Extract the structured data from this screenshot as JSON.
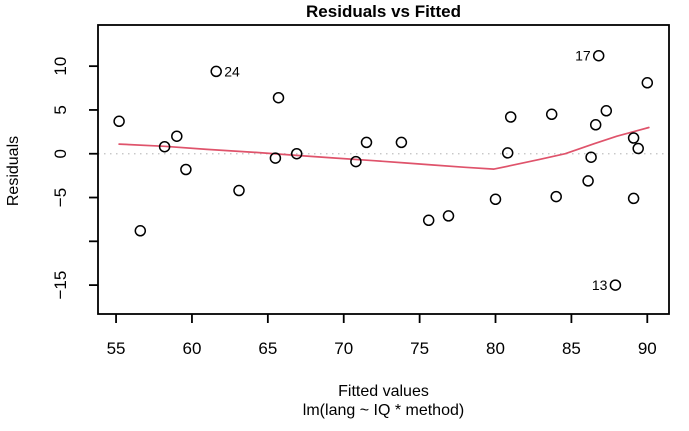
{
  "chart_data": {
    "type": "scatter",
    "title": "Residuals vs Fitted",
    "xlabel": "Fitted values",
    "xlabel_sub": "lm(lang ~ IQ * method)",
    "ylabel": "Residuals",
    "xlim": [
      53.81,
      91.43
    ],
    "ylim": [
      -18.3,
      14.7
    ],
    "grid": false,
    "legend": "none",
    "x_ticks": [
      {
        "v": 55,
        "label": "55"
      },
      {
        "v": 60,
        "label": "60"
      },
      {
        "v": 65,
        "label": "65"
      },
      {
        "v": 70,
        "label": "70"
      },
      {
        "v": 75,
        "label": "75"
      },
      {
        "v": 80,
        "label": "80"
      },
      {
        "v": 85,
        "label": "85"
      },
      {
        "v": 90,
        "label": "90"
      }
    ],
    "y_ticks": [
      {
        "v": 10,
        "label": "10"
      },
      {
        "v": 5,
        "label": "5"
      },
      {
        "v": 0,
        "label": "0"
      },
      {
        "v": -5,
        "label": "−5"
      },
      {
        "v": -10,
        "label": ""
      },
      {
        "v": -15,
        "label": "−15"
      }
    ],
    "zero_line_y": 0,
    "points": [
      {
        "x": 55.2,
        "y": 3.7
      },
      {
        "x": 56.6,
        "y": -8.8
      },
      {
        "x": 58.2,
        "y": 0.8
      },
      {
        "x": 59.0,
        "y": 2.0
      },
      {
        "x": 59.6,
        "y": -1.8
      },
      {
        "x": 61.6,
        "y": 9.4,
        "label": "24",
        "label_side": "right"
      },
      {
        "x": 63.1,
        "y": -4.2
      },
      {
        "x": 65.5,
        "y": -0.5
      },
      {
        "x": 65.7,
        "y": 6.4
      },
      {
        "x": 66.9,
        "y": 0.0
      },
      {
        "x": 70.8,
        "y": -0.9
      },
      {
        "x": 71.5,
        "y": 1.3
      },
      {
        "x": 73.8,
        "y": 1.3
      },
      {
        "x": 75.6,
        "y": -7.6
      },
      {
        "x": 76.9,
        "y": -7.1
      },
      {
        "x": 80.0,
        "y": -5.2
      },
      {
        "x": 80.8,
        "y": 0.1
      },
      {
        "x": 81.0,
        "y": 4.2
      },
      {
        "x": 83.7,
        "y": 4.5
      },
      {
        "x": 84.0,
        "y": -4.9
      },
      {
        "x": 86.1,
        "y": -3.1
      },
      {
        "x": 86.3,
        "y": -0.4
      },
      {
        "x": 86.6,
        "y": 3.3
      },
      {
        "x": 86.8,
        "y": 11.2,
        "label": "17",
        "label_side": "left"
      },
      {
        "x": 87.3,
        "y": 4.9
      },
      {
        "x": 87.9,
        "y": -15.0,
        "label": "13",
        "label_side": "left"
      },
      {
        "x": 89.1,
        "y": 1.8
      },
      {
        "x": 89.1,
        "y": -5.1
      },
      {
        "x": 89.4,
        "y": 0.6
      },
      {
        "x": 90.0,
        "y": 8.1
      }
    ],
    "smooth_line": [
      [
        55.2,
        1.1
      ],
      [
        58.2,
        0.85
      ],
      [
        61.0,
        0.5
      ],
      [
        64.2,
        0.15
      ],
      [
        67.0,
        -0.2
      ],
      [
        69.5,
        -0.5
      ],
      [
        72.0,
        -0.8
      ],
      [
        74.0,
        -1.05
      ],
      [
        76.0,
        -1.3
      ],
      [
        78.0,
        -1.55
      ],
      [
        79.9,
        -1.75
      ],
      [
        81.0,
        -1.35
      ],
      [
        82.9,
        -0.65
      ],
      [
        84.6,
        0.0
      ],
      [
        86.5,
        1.15
      ],
      [
        88.0,
        2.0
      ],
      [
        90.1,
        3.0
      ]
    ],
    "colors": {
      "smooth_line": "#df536b",
      "zero_line": "#c0c0c0",
      "point_stroke": "#000000",
      "box": "#000000",
      "text": "#000000"
    }
  }
}
